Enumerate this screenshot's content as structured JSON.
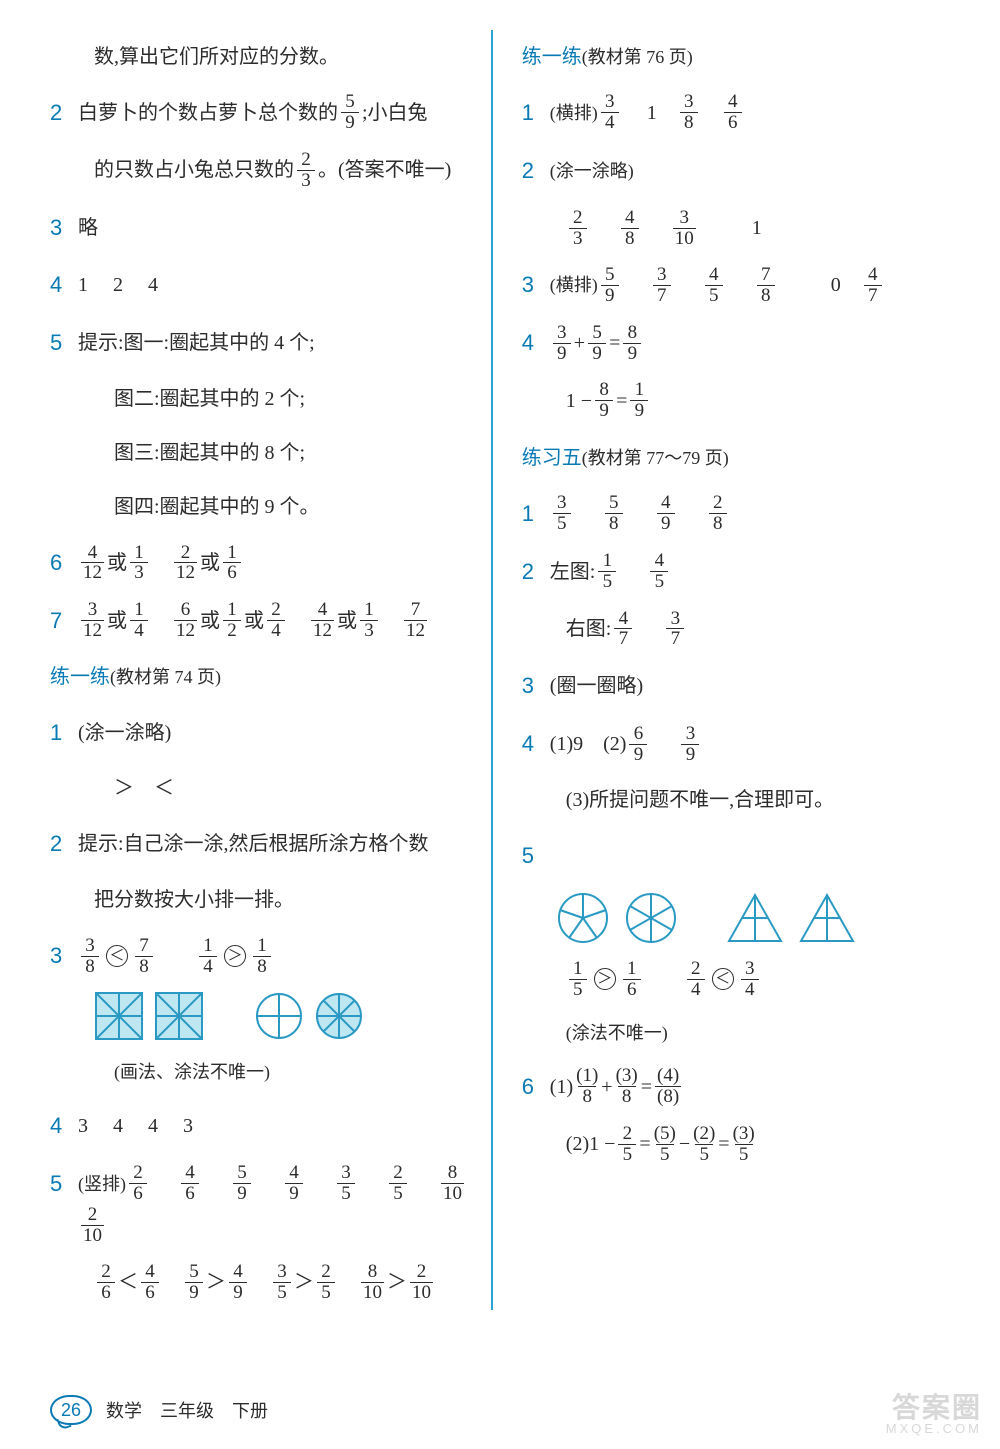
{
  "colors": {
    "accent": "#0a7ab5",
    "divider": "#2aa4d4",
    "shape": "#5bb8d9",
    "text": "#2c2c2c"
  },
  "left": {
    "top_continuation": "数,算出它们所对应的分数。",
    "q2_a": "白萝卜的个数占萝卜总个数的",
    "q2_frac1": {
      "n": "5",
      "d": "9"
    },
    "q2_b": ";小白兔",
    "q2_c": "的只数占小兔总只数的",
    "q2_frac2": {
      "n": "2",
      "d": "3"
    },
    "q2_d": "。(答案不唯一)",
    "q3": "略",
    "q4": "1  2  4",
    "q5_a": "提示:图一:圈起其中的 4 个;",
    "q5_b": "图二:圈起其中的 2 个;",
    "q5_c": "图三:圈起其中的 8 个;",
    "q5_d": "图四:圈起其中的 9 个。",
    "q6": [
      {
        "n": "4",
        "d": "12"
      },
      "或",
      {
        "n": "1",
        "d": "3"
      },
      " ",
      {
        "n": "2",
        "d": "12"
      },
      "或",
      {
        "n": "1",
        "d": "6"
      }
    ],
    "q7": [
      {
        "n": "3",
        "d": "12"
      },
      "或",
      {
        "n": "1",
        "d": "4"
      },
      " ",
      {
        "n": "6",
        "d": "12"
      },
      "或",
      {
        "n": "1",
        "d": "2"
      },
      "或",
      {
        "n": "2",
        "d": "4"
      },
      " ",
      {
        "n": "4",
        "d": "12"
      },
      "或",
      {
        "n": "1",
        "d": "3"
      },
      " ",
      {
        "n": "7",
        "d": "12"
      }
    ],
    "sec74_title": "练一练",
    "sec74_sub": "(教材第 74 页)",
    "s74_q1": "(涂一涂略)",
    "s74_q1b": "＞ ＜",
    "s74_q2": "提示:自己涂一涂,然后根据所涂方格个数",
    "s74_q2b": "把分数按大小排一排。",
    "s74_q3": [
      {
        "n": "3",
        "d": "8"
      },
      {
        "cmp": "<"
      },
      {
        "n": "7",
        "d": "8"
      },
      "  ",
      {
        "n": "1",
        "d": "4"
      },
      {
        "cmp": ">"
      },
      {
        "n": "1",
        "d": "8"
      }
    ],
    "s74_q3_note": "(画法、涂法不唯一)",
    "s74_q4": "3  4  4  3",
    "s74_q5_label": "(竖排)",
    "s74_q5_row": [
      {
        "n": "2",
        "d": "6"
      },
      {
        "n": "4",
        "d": "6"
      },
      {
        "n": "5",
        "d": "9"
      },
      {
        "n": "4",
        "d": "9"
      },
      {
        "n": "3",
        "d": "5"
      },
      {
        "n": "2",
        "d": "5"
      },
      {
        "n": "8",
        "d": "10"
      },
      {
        "n": "2",
        "d": "10"
      }
    ],
    "s74_q5_cmp": [
      {
        "n": "2",
        "d": "6"
      },
      "＜",
      {
        "n": "4",
        "d": "6"
      },
      " ",
      {
        "n": "5",
        "d": "9"
      },
      "＞",
      {
        "n": "4",
        "d": "9"
      },
      " ",
      {
        "n": "3",
        "d": "5"
      },
      "＞",
      {
        "n": "2",
        "d": "5"
      },
      " ",
      {
        "n": "8",
        "d": "10"
      },
      "＞",
      {
        "n": "2",
        "d": "10"
      }
    ]
  },
  "right": {
    "sec76_title": "练一练",
    "sec76_sub": "(教材第 76 页)",
    "r1_label": "(横排)",
    "r1": [
      {
        "n": "3",
        "d": "4"
      },
      "  1 ",
      {
        "n": "3",
        "d": "8"
      },
      " ",
      {
        "n": "4",
        "d": "6"
      }
    ],
    "r2_label": "(涂一涂略)",
    "r2": [
      {
        "n": "2",
        "d": "3"
      },
      {
        "n": "4",
        "d": "8"
      },
      {
        "n": "3",
        "d": "10"
      },
      "  1"
    ],
    "r3_label": "(横排)",
    "r3": [
      {
        "n": "5",
        "d": "9"
      },
      {
        "n": "3",
        "d": "7"
      },
      {
        "n": "4",
        "d": "5"
      },
      {
        "n": "7",
        "d": "8"
      },
      "  0 ",
      {
        "n": "4",
        "d": "7"
      }
    ],
    "r4a": [
      {
        "n": "3",
        "d": "9"
      },
      "+",
      {
        "n": "5",
        "d": "9"
      },
      "=",
      {
        "n": "8",
        "d": "9"
      }
    ],
    "r4b": [
      "1 −",
      {
        "n": "8",
        "d": "9"
      },
      "=",
      {
        "n": "1",
        "d": "9"
      }
    ],
    "sec5_title": "练习五",
    "sec5_sub": "(教材第 77～79 页)",
    "p5_q1": [
      {
        "n": "3",
        "d": "5"
      },
      {
        "n": "5",
        "d": "8"
      },
      {
        "n": "4",
        "d": "9"
      },
      {
        "n": "2",
        "d": "8"
      }
    ],
    "p5_q2a_label": "左图:",
    "p5_q2a": [
      {
        "n": "1",
        "d": "5"
      },
      {
        "n": "4",
        "d": "5"
      }
    ],
    "p5_q2b_label": "右图:",
    "p5_q2b": [
      {
        "n": "4",
        "d": "7"
      },
      {
        "n": "3",
        "d": "7"
      }
    ],
    "p5_q3": "(圈一圈略)",
    "p5_q4_a": "(1)9 (2)",
    "p5_q4_fracs": [
      {
        "n": "6",
        "d": "9"
      },
      {
        "n": "3",
        "d": "9"
      }
    ],
    "p5_q4_b": "(3)所提问题不唯一,合理即可。",
    "p5_q5_cmp": [
      {
        "n": "1",
        "d": "5"
      },
      {
        "cmp": ">"
      },
      {
        "n": "1",
        "d": "6"
      },
      "  ",
      {
        "n": "2",
        "d": "4"
      },
      {
        "cmp": "<"
      },
      {
        "n": "3",
        "d": "4"
      }
    ],
    "p5_q5_note": "(涂法不唯一)",
    "p5_q6a": [
      "(1)",
      {
        "n": "(1)",
        "d": "8"
      },
      "+",
      {
        "n": "(3)",
        "d": "8"
      },
      "=",
      {
        "n": "(4)",
        "d": "(8)"
      }
    ],
    "p5_q6b": [
      "(2)1 −",
      {
        "n": "2",
        "d": "5"
      },
      "=",
      {
        "n": "(5)",
        "d": "5"
      },
      "−",
      {
        "n": "(2)",
        "d": "5"
      },
      "=",
      {
        "n": "(3)",
        "d": "5"
      }
    ]
  },
  "footer": {
    "page": "26",
    "subject": "数学 三年级 下册"
  },
  "watermark": {
    "main": "答案圈",
    "sub": "MXQE.COM"
  }
}
